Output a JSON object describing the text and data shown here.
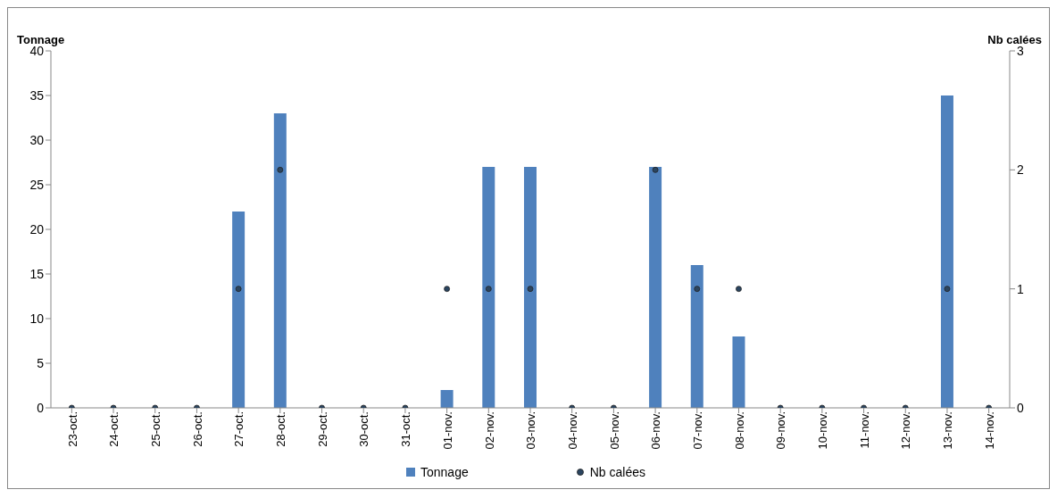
{
  "chart_data": {
    "type": "bar",
    "ylabel": "Tonnage",
    "y2label": "Nb calées",
    "categories": [
      "23-oct.",
      "24-oct.",
      "25-oct.",
      "26-oct.",
      "27-oct.",
      "28-oct.",
      "29-oct.",
      "30-oct.",
      "31-oct.",
      "01-nov.",
      "02-nov.",
      "03-nov.",
      "04-nov.",
      "05-nov.",
      "06-nov.",
      "07-nov.",
      "08-nov.",
      "09-nov.",
      "10-nov.",
      "11-nov.",
      "12-nov.",
      "13-nov.",
      "14-nov."
    ],
    "series": [
      {
        "name": "Tonnage",
        "color": "#4f81bd",
        "values": [
          0,
          0,
          0,
          0,
          22,
          33,
          0,
          0,
          0,
          2,
          27,
          27,
          0,
          0,
          27,
          16,
          8,
          0,
          0,
          0,
          0,
          35,
          0
        ]
      },
      {
        "name": "Nb calées",
        "type": "scatter",
        "axis": "y2",
        "marker": "circle",
        "color": "#2b4560",
        "values": [
          0,
          0,
          0,
          0,
          1,
          2,
          0,
          0,
          0,
          1,
          1,
          1,
          0,
          0,
          2,
          1,
          1,
          0,
          0,
          0,
          0,
          1,
          0
        ]
      }
    ],
    "ylim": [
      0,
      40
    ],
    "yticks": [
      0,
      5,
      10,
      15,
      20,
      25,
      30,
      35,
      40
    ],
    "y2lim": [
      0,
      3
    ],
    "y2ticks": [
      0,
      1,
      2,
      3
    ],
    "legend": "bottom"
  }
}
